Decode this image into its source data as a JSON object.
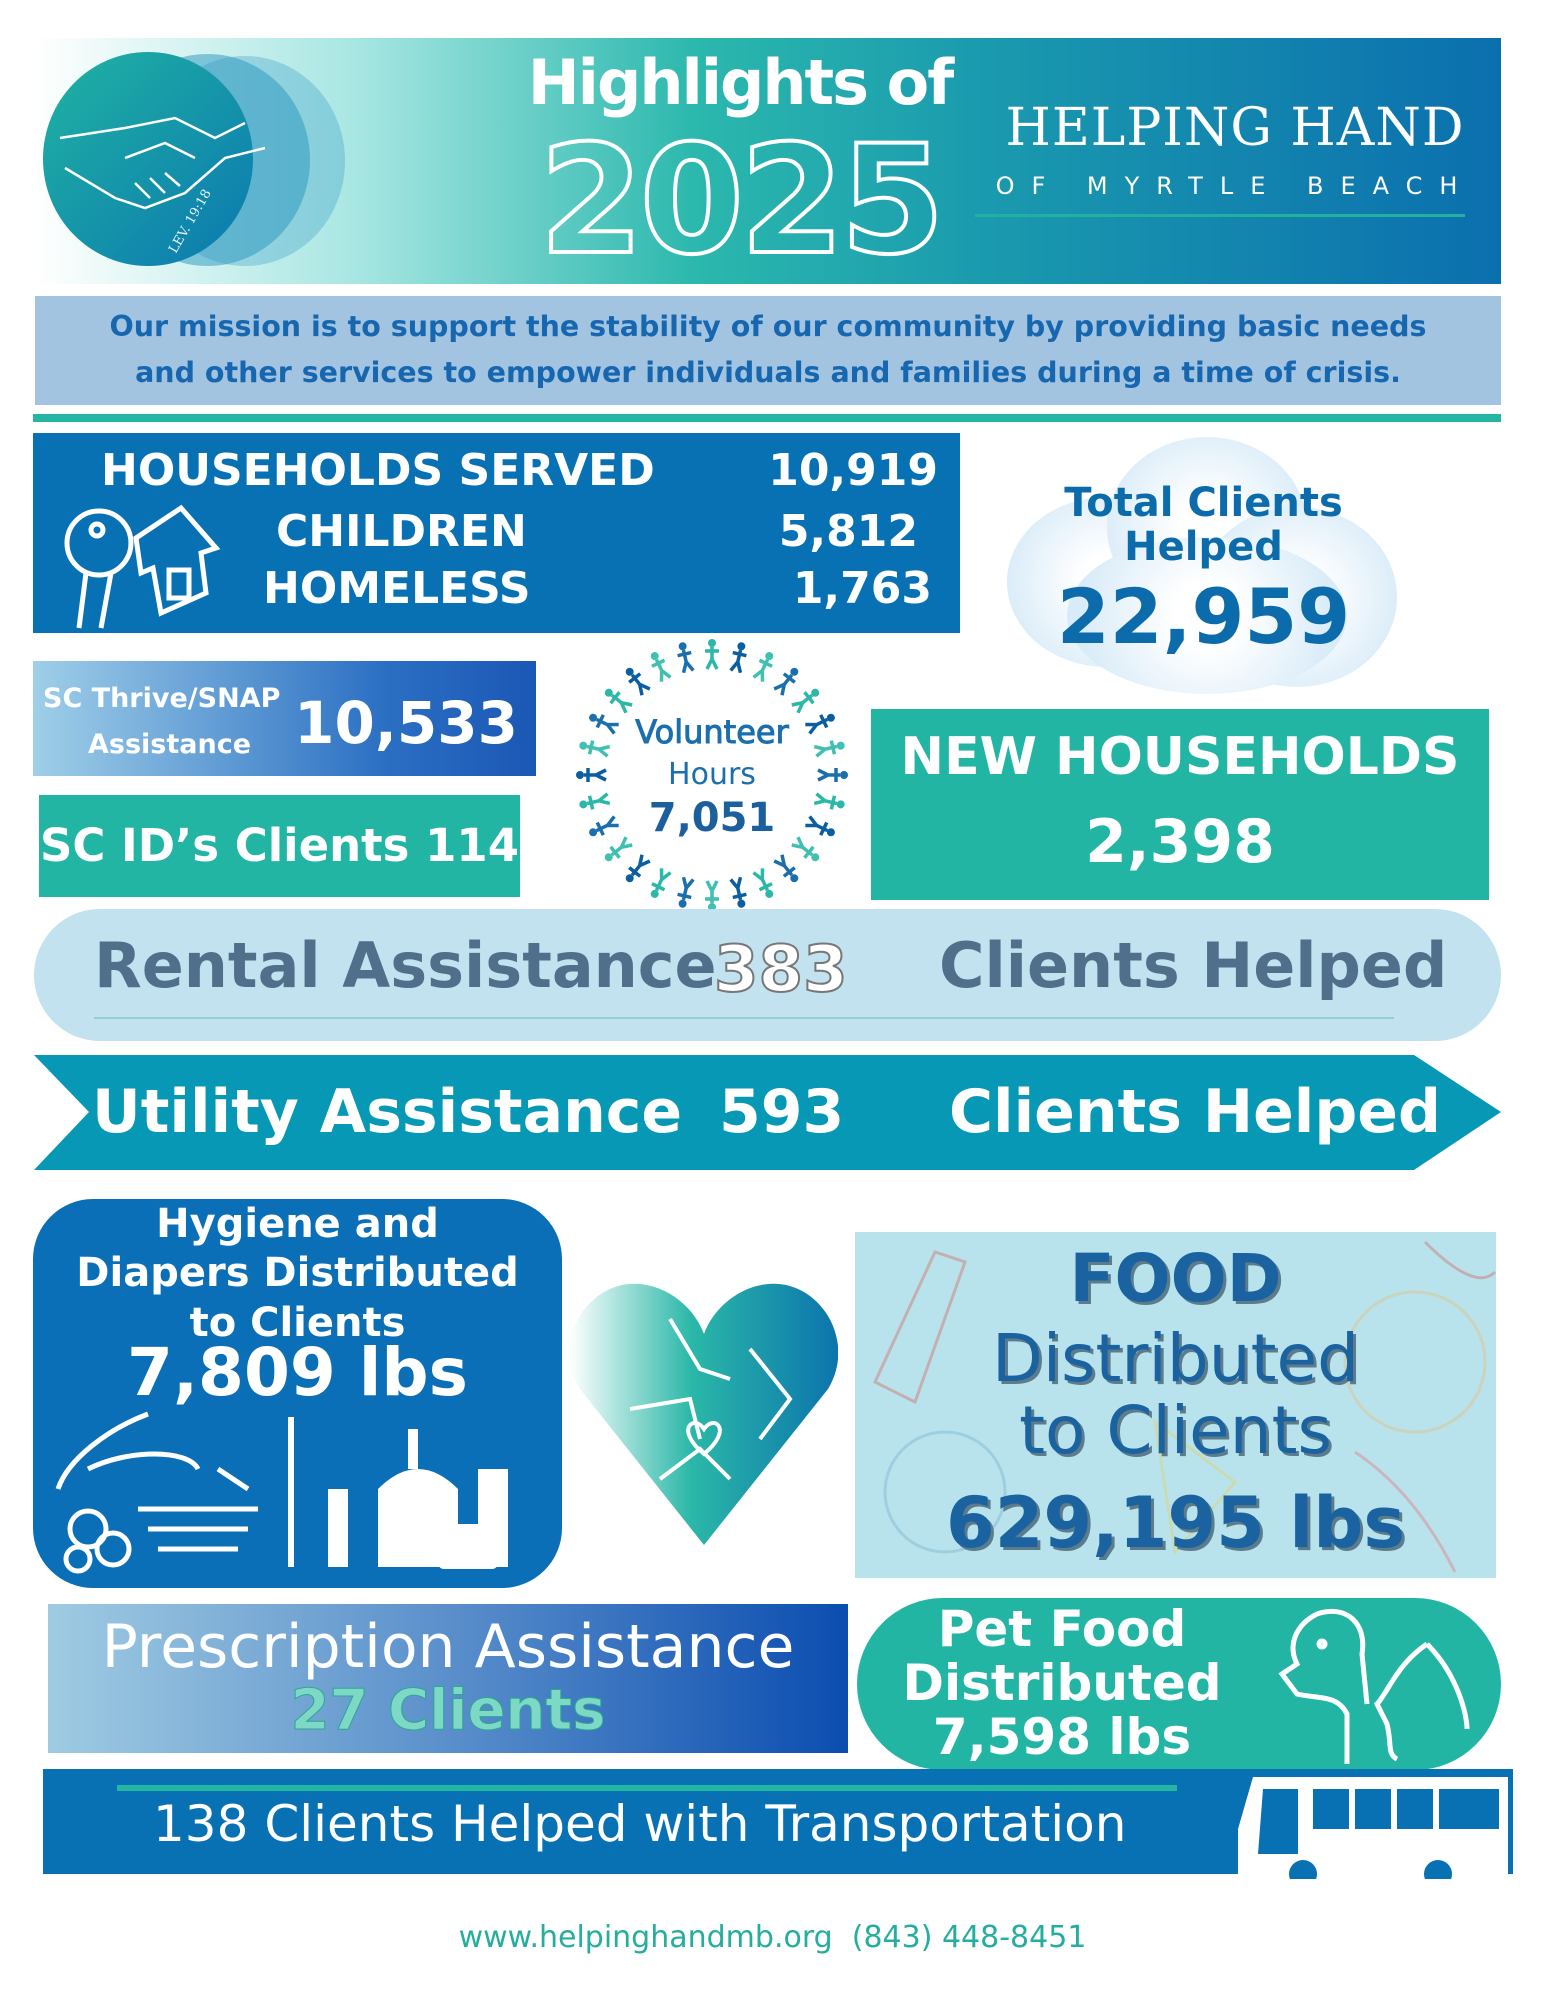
{
  "header": {
    "title_line1": "Highlights of",
    "year": "2025",
    "org_name": "HELPING HAND",
    "org_sub": "OF MYRTLE BEACH",
    "logo_text": "LEV. 19:18"
  },
  "mission": {
    "line1": "Our mission is to support the stability of our community by providing basic needs",
    "line2": "and other services to empower individuals and families during a time of crisis."
  },
  "households": {
    "rows": [
      {
        "label": "HOUSEHOLDS SERVED",
        "value": "10,919"
      },
      {
        "label": "CHILDREN",
        "value": "5,812"
      },
      {
        "label": "HOMELESS",
        "value": "1,763"
      }
    ]
  },
  "total_clients": {
    "label_line1": "Total Clients",
    "label_line2": "Helped",
    "value": "22,959"
  },
  "snap": {
    "label_line1": "SC Thrive/SNAP",
    "label_line2": "Assistance",
    "value": "10,533"
  },
  "scid": {
    "label": "SC ID’s Clients 114"
  },
  "volunteer": {
    "label_line1": "Volunteer",
    "label_line2": "Hours",
    "value": "7,051"
  },
  "new_households": {
    "label": "NEW HOUSEHOLDS",
    "value": "2,398"
  },
  "rental": {
    "label": "Rental Assistance",
    "value": "383",
    "suffix": "Clients Helped"
  },
  "utility": {
    "label": "Utility Assistance",
    "value": "593",
    "suffix": "Clients Helped"
  },
  "hygiene": {
    "line1": "Hygiene and",
    "line2": "Diapers Distributed",
    "line3": "to Clients",
    "value": "7,809 lbs"
  },
  "food": {
    "line1": "FOOD",
    "line2": "Distributed",
    "line3": "to Clients",
    "value": "629,195 lbs"
  },
  "prescription": {
    "label": "Prescription Assistance",
    "value": "27 Clients"
  },
  "pet_food": {
    "line1": "Pet Food",
    "line2": "Distributed",
    "value": "7,598 lbs"
  },
  "transportation": {
    "label": "138 Clients Helped with Transportation"
  },
  "footer": {
    "website": "www.helpinghandmb.org",
    "phone": "(843) 448-8451"
  },
  "colors": {
    "blue": "#0771b4",
    "teal": "#23b5a4",
    "light_blue": "#a2c4e0",
    "utility": "#0698b4"
  }
}
